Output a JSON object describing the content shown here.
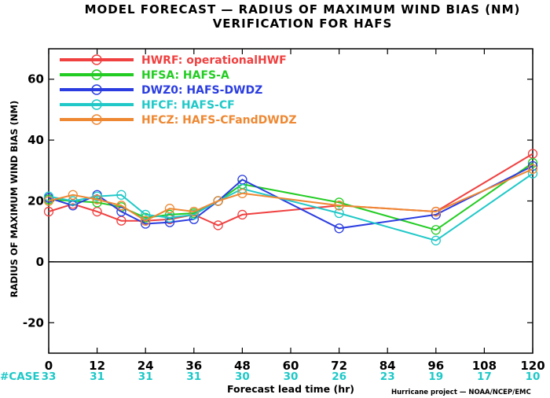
{
  "chart_data": {
    "type": "line",
    "title": "MODEL FORECAST — RADIUS OF MAXIMUM WIND BIAS (NM)",
    "subtitle": "VERIFICATION FOR HAFS",
    "xlabel": "Forecast lead time (hr)",
    "ylabel": "RADIUS OF MAXIMUM WIND BIAS (NM)",
    "credit": "Hurricane project — NOAA/NCEP/EMC",
    "xlim": [
      0,
      120
    ],
    "ylim": [
      -30,
      70
    ],
    "x_ticks": [
      "0",
      "12",
      "24",
      "36",
      "48",
      "60",
      "72",
      "84",
      "96",
      "108",
      "120"
    ],
    "y_ticks": [
      "60",
      "40",
      "20",
      "0",
      "-20"
    ],
    "y_tick_values": [
      60,
      40,
      20,
      0,
      -20
    ],
    "case_label": "#CASE",
    "case_counts": [
      "33",
      "31",
      "31",
      "31",
      "30",
      "30",
      "26",
      "23",
      "19",
      "17",
      "10"
    ],
    "legend_position": "top-left",
    "series": [
      {
        "name": "HWRF: operationalHWF",
        "color": "#f04040",
        "x": [
          0,
          6,
          12,
          18,
          24,
          30,
          36,
          42,
          48,
          72,
          96,
          120
        ],
        "y": [
          16.5,
          19,
          16.5,
          13.5,
          13.5,
          14,
          15.5,
          12,
          15.5,
          18.5,
          16.5,
          35.5
        ]
      },
      {
        "name": "HFSA: HAFS-A",
        "color": "#22cc22",
        "x": [
          0,
          6,
          12,
          18,
          24,
          30,
          36,
          42,
          48,
          72,
          96,
          120
        ],
        "y": [
          20.5,
          20,
          19.5,
          18,
          14.5,
          15.5,
          16,
          20,
          25.5,
          19.5,
          10.5,
          32.5
        ]
      },
      {
        "name": "DWZ0: HAFS-DWDZ",
        "color": "#2b3de0",
        "x": [
          0,
          6,
          12,
          18,
          24,
          30,
          36,
          42,
          48,
          72,
          96,
          120
        ],
        "y": [
          21,
          18.5,
          22,
          16.5,
          12.5,
          13,
          14,
          20,
          27,
          11,
          15.5,
          31.5
        ]
      },
      {
        "name": "HFCF: HAFS-CF",
        "color": "#20c8c8",
        "x": [
          0,
          6,
          12,
          18,
          24,
          30,
          36,
          42,
          48,
          72,
          96,
          120
        ],
        "y": [
          21.5,
          20,
          21.5,
          22,
          15.5,
          14.5,
          15.5,
          20,
          24,
          16,
          7,
          29
        ]
      },
      {
        "name": "HFCZ: HAFS-CFandDWDZ",
        "color": "#ee8833",
        "x": [
          0,
          6,
          12,
          18,
          24,
          30,
          36,
          42,
          48,
          72,
          96,
          120
        ],
        "y": [
          20,
          22,
          20.5,
          18.5,
          13.5,
          17.5,
          16.5,
          20,
          22.5,
          18.5,
          16.5,
          30.5
        ]
      }
    ]
  }
}
